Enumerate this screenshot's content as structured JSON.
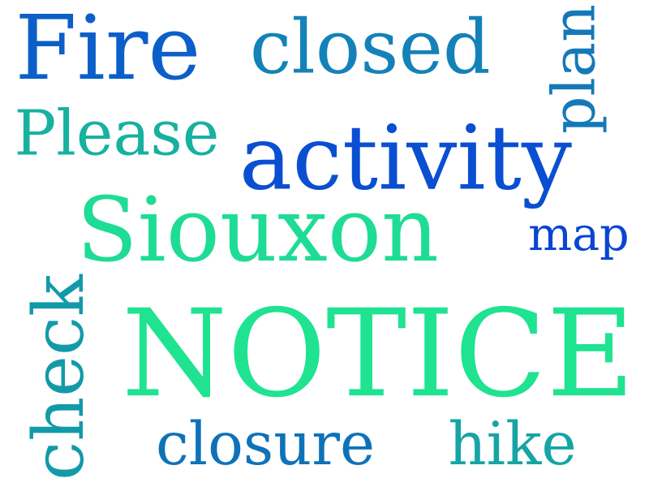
{
  "words": [
    {
      "text": "Fire",
      "color": "#0c5fc8"
    },
    {
      "text": "closed",
      "color": "#1482b8"
    },
    {
      "text": "plan",
      "color": "#1578b8"
    },
    {
      "text": "Please",
      "color": "#17b1a0"
    },
    {
      "text": "activity",
      "color": "#0a4fd2"
    },
    {
      "text": "Siouxon",
      "color": "#1edc95"
    },
    {
      "text": "map",
      "color": "#0a45d2"
    },
    {
      "text": "check",
      "color": "#129aa8"
    },
    {
      "text": "NOTICE",
      "color": "#1fe390"
    },
    {
      "text": "closure",
      "color": "#0f72b8"
    },
    {
      "text": "hike",
      "color": "#16a4a5"
    }
  ],
  "orientations": [
    "horizontal",
    "horizontal",
    "vertical-up",
    "horizontal",
    "horizontal",
    "horizontal",
    "horizontal",
    "vertical-up",
    "horizontal",
    "horizontal",
    "horizontal"
  ]
}
